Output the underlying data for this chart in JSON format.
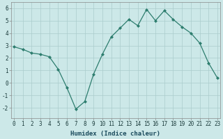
{
  "x": [
    0,
    1,
    2,
    3,
    4,
    5,
    6,
    7,
    8,
    9,
    10,
    11,
    12,
    13,
    14,
    15,
    16,
    17,
    18,
    19,
    20,
    21,
    22,
    23
  ],
  "y": [
    2.9,
    2.7,
    2.4,
    2.3,
    2.1,
    1.1,
    -0.4,
    -2.1,
    -1.5,
    0.7,
    2.3,
    3.7,
    4.4,
    5.1,
    4.6,
    5.9,
    5.0,
    5.8,
    5.1,
    4.5,
    4.0,
    3.2,
    1.6,
    0.4
  ],
  "line_color": "#2d7d6e",
  "bg_color": "#cce8e8",
  "grid_color": "#aacccc",
  "xlabel": "Humidex (Indice chaleur)",
  "ylim": [
    -2.8,
    6.5
  ],
  "xlim": [
    -0.3,
    23.3
  ],
  "yticks": [
    -2,
    -1,
    0,
    1,
    2,
    3,
    4,
    5,
    6
  ],
  "xtick_labels": [
    "0",
    "1",
    "2",
    "3",
    "4",
    "5",
    "6",
    "7",
    "8",
    "9",
    "1011121314151617181920212223"
  ],
  "xlabel_fontsize": 6.5,
  "tick_fontsize": 5.5,
  "linewidth": 0.9,
  "markersize": 2.0
}
